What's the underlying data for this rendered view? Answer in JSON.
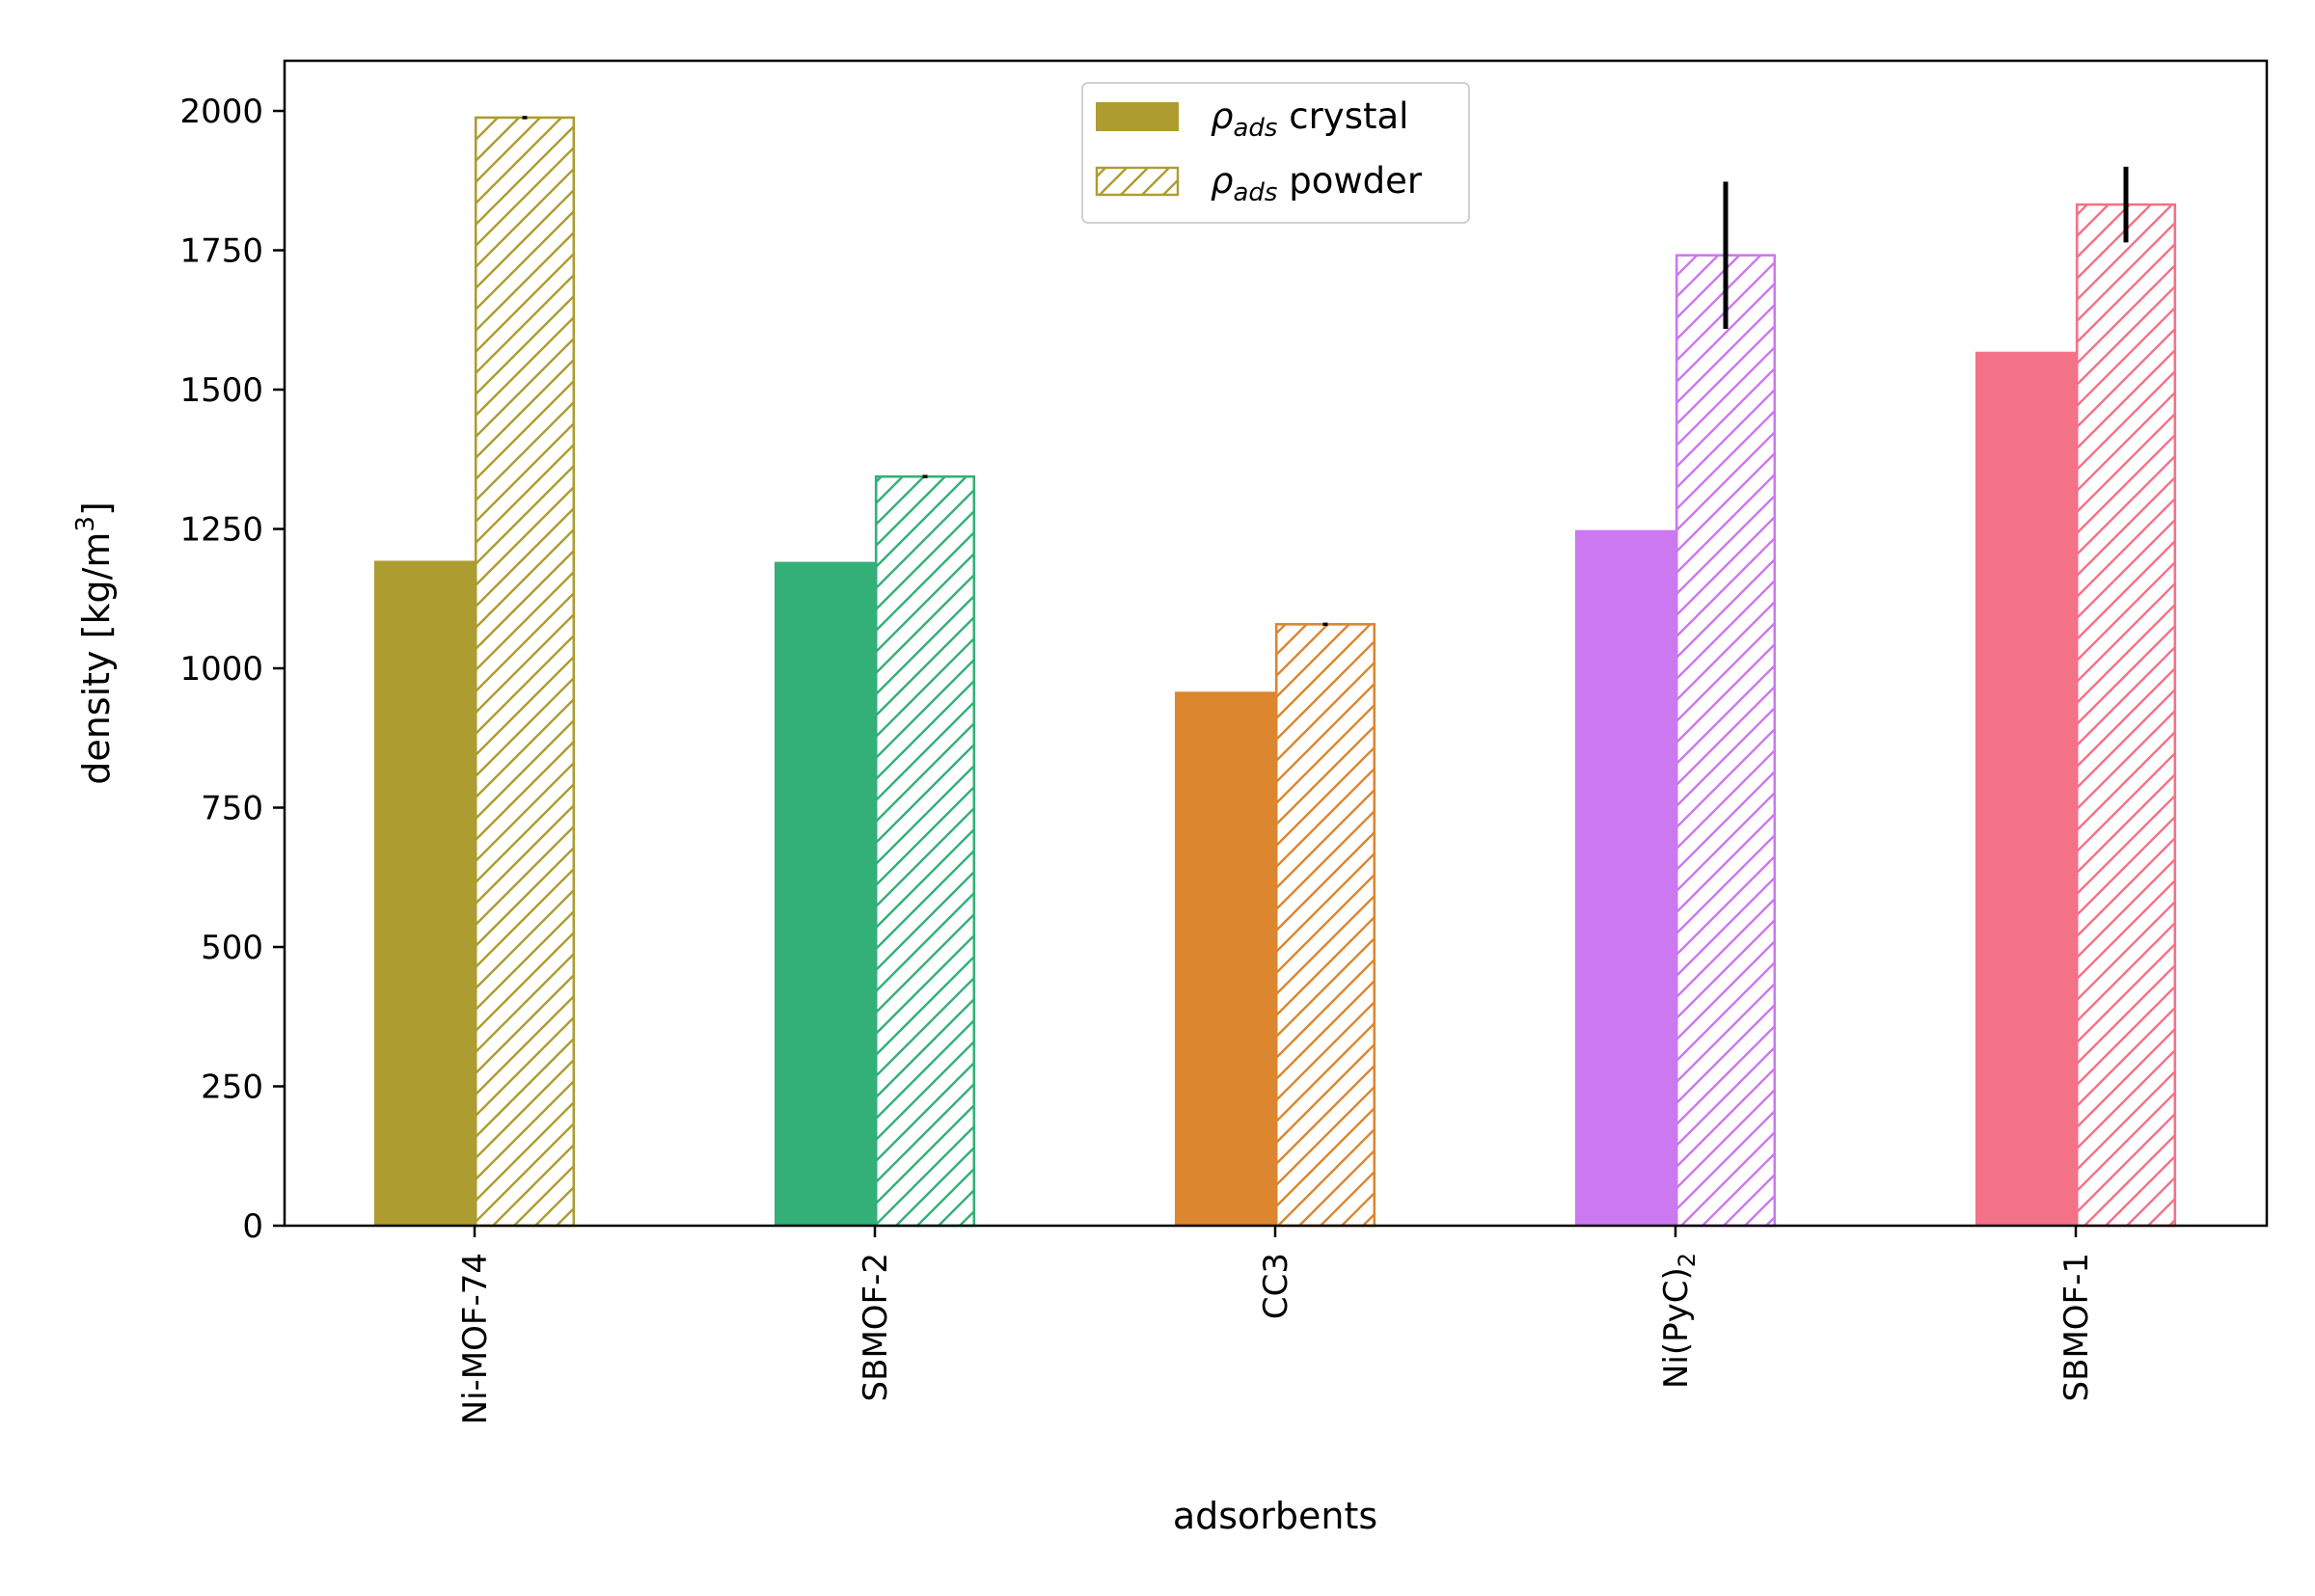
{
  "chart_data": {
    "type": "bar",
    "title": "",
    "xlabel": "adsorbents",
    "ylabel_parts": {
      "main": "density [kg/m",
      "sup": "3",
      "end": "]"
    },
    "ylim": [
      0,
      2090
    ],
    "yticks": [
      0,
      250,
      500,
      750,
      1000,
      1250,
      1500,
      1750,
      2000
    ],
    "categories": [
      {
        "name": "Ni-MOF-74",
        "base": "Ni-MOF-74",
        "sub": "",
        "color": "#ad9c30"
      },
      {
        "name": "SBMOF-2",
        "base": "SBMOF-2",
        "sub": "",
        "color": "#33b078"
      },
      {
        "name": "CC3",
        "base": "CC3",
        "sub": "",
        "color": "#dc8630"
      },
      {
        "name": "Ni(PyC)2",
        "base": "Ni(PyC)",
        "sub": "2",
        "color": "#cc78f0"
      },
      {
        "name": "SBMOF-1",
        "base": "SBMOF-1",
        "sub": "",
        "color": "#f47287"
      }
    ],
    "series": [
      {
        "name": "ρads crystal",
        "style": "solid",
        "values": [
          1193,
          1191,
          958,
          1248,
          1568
        ],
        "errors": [
          0,
          0,
          0,
          0,
          0
        ]
      },
      {
        "name": "ρads powder",
        "style": "hatched",
        "values": [
          1988,
          1344,
          1079,
          1741,
          1832
        ],
        "errors": [
          3,
          3,
          3,
          132,
          68
        ]
      }
    ],
    "legend": {
      "placement": "top-center",
      "entries": [
        {
          "symbol": "ρ",
          "sub": "ads",
          "text": " crystal",
          "style": "solid"
        },
        {
          "symbol": "ρ",
          "sub": "ads",
          "text": " powder",
          "style": "hatched"
        }
      ]
    },
    "grid": false
  }
}
